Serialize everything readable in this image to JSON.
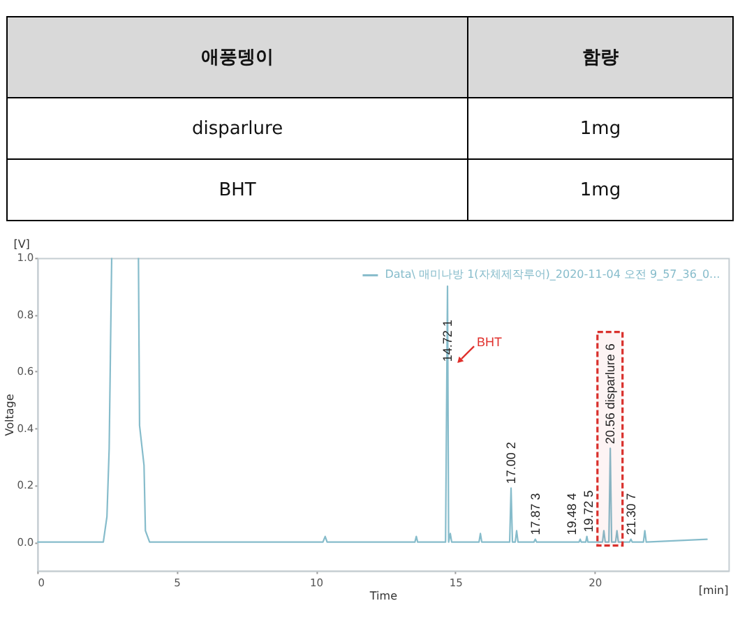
{
  "chart_data": [
    {
      "type": "other",
      "annotations": [
        "애풍뎅이",
        "함량",
        "disparlure",
        "1mg",
        "BHT",
        "1mg"
      ]
    },
    {
      "type": "line",
      "xlabel": "Time",
      "ylabel": "Voltage",
      "x": [
        0,
        2.37,
        2.5,
        2.58,
        2.67,
        3.1,
        3.63,
        3.67,
        3.83,
        3.88,
        4.03,
        10.25,
        10.33,
        10.4,
        13.55,
        13.6,
        13.65,
        14.65,
        14.72,
        14.76,
        14.82,
        14.87,
        15.85,
        15.9,
        15.95,
        16.95,
        17.0,
        17.05,
        17.15,
        17.2,
        17.25,
        17.82,
        17.87,
        17.92,
        19.44,
        19.48,
        19.52,
        19.68,
        19.72,
        19.76,
        20.28,
        20.33,
        20.38,
        20.51,
        20.56,
        20.61,
        20.75,
        20.8,
        20.85,
        21.25,
        21.3,
        21.35,
        21.75,
        21.8,
        21.85,
        24.03
      ],
      "series": [
        {
          "name": "Data\\ 매미나방 1(자체제작루어)_2020-11-04 오전 9_57_36_0...",
          "color": "#86bccb",
          "values": [
            0,
            0,
            0.09,
            0.33,
            1.0,
            null,
            1.0,
            0.41,
            0.27,
            0.04,
            0,
            0,
            0.02,
            0,
            0,
            0.02,
            0,
            0,
            0.9,
            0,
            0.03,
            0,
            0,
            0.03,
            0,
            0,
            0.19,
            0,
            0,
            0.04,
            0,
            0,
            0.01,
            0,
            0,
            0.01,
            0,
            0,
            0.02,
            0,
            0,
            0.04,
            0,
            0,
            0.33,
            0,
            0,
            0.04,
            0,
            0,
            0.01,
            0,
            0,
            0.04,
            0,
            0.01
          ]
        }
      ],
      "xlim": [
        0,
        24.8
      ],
      "ylim": [
        -0.1,
        1.0
      ],
      "xticks": [
        0,
        5,
        10,
        15,
        20
      ],
      "yticks": [
        {
          "value": 0,
          "label": "0.0"
        },
        0.2,
        0.4,
        0.6,
        0.8,
        {
          "value": 1.0,
          "label": "1.0"
        }
      ],
      "grid": false,
      "legend": "top right",
      "line_style": "solid",
      "bands": [
        {
          "axis": "x",
          "from": 20.1,
          "to": 21.0,
          "color": "#d9302c"
        }
      ],
      "annotations": [
        {
          "text": "14.72 1",
          "x": 14.72,
          "y": 0.62
        },
        {
          "text": "17.00 2",
          "x": 17.0,
          "y": 0.19
        },
        {
          "text": "17.87 3",
          "x": 17.87,
          "y": 0.01
        },
        {
          "text": "19.48 4",
          "x": 19.48,
          "y": 0.01
        },
        {
          "text": "19.72 5",
          "x": 19.72,
          "y": 0.02
        },
        {
          "text": "20.56 disparlure 6",
          "x": 20.56,
          "y": 0.33
        },
        {
          "text": "21.30 7",
          "x": 21.3,
          "y": 0.01
        },
        {
          "text": "BHT",
          "x": 14.72,
          "y": 0.63
        },
        "[V]",
        "[min]"
      ]
    }
  ]
}
